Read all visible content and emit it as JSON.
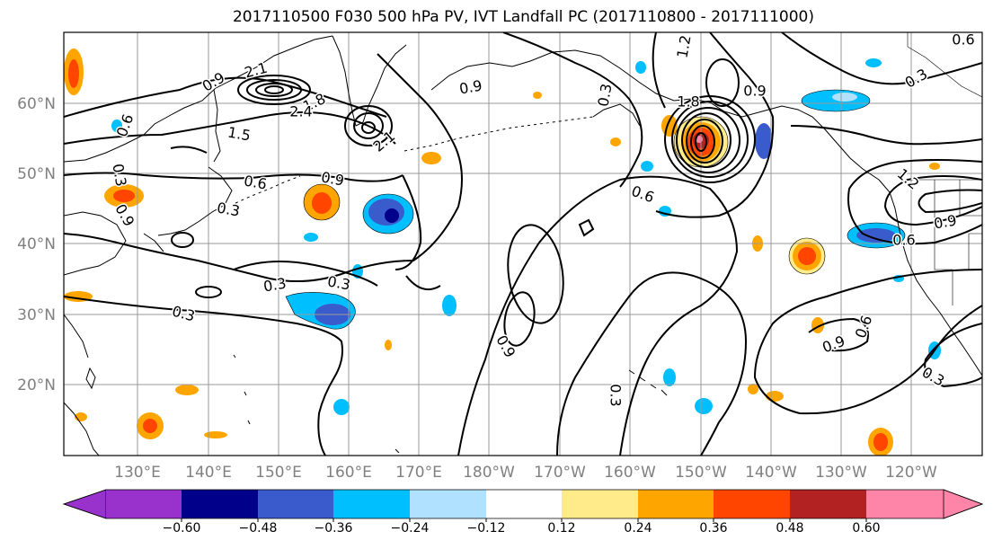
{
  "title": "2017110500 F030 500 hPa PV, IVT Landfall PC (2017110800 - 2017111000)",
  "map": {
    "lon_labels": [
      "130°E",
      "140°E",
      "150°E",
      "160°E",
      "170°E",
      "180°W",
      "170°W",
      "160°W",
      "150°W",
      "140°W",
      "130°W",
      "120°W"
    ],
    "lat_labels": [
      "60°N",
      "50°N",
      "40°N",
      "30°N",
      "20°N"
    ],
    "contour_labels": [
      {
        "text": "0.9"
      },
      {
        "text": "2.1"
      },
      {
        "text": "1.8"
      },
      {
        "text": "2.4"
      },
      {
        "text": "1.5"
      },
      {
        "text": "2.1"
      },
      {
        "text": "0.9"
      },
      {
        "text": "0.6"
      },
      {
        "text": "0.9"
      },
      {
        "text": "0.3"
      },
      {
        "text": "0.3"
      },
      {
        "text": "0.3"
      },
      {
        "text": "0.3"
      },
      {
        "text": "1.2"
      },
      {
        "text": "1.8"
      },
      {
        "text": "0.3"
      },
      {
        "text": "0.9"
      },
      {
        "text": "0.6"
      },
      {
        "text": "0.3"
      },
      {
        "text": "0.9"
      },
      {
        "text": "0.3"
      },
      {
        "text": "0.9"
      },
      {
        "text": "0.6"
      },
      {
        "text": "0.9"
      },
      {
        "text": "0.6"
      },
      {
        "text": "1.2"
      },
      {
        "text": "0.9"
      },
      {
        "text": "0.3"
      },
      {
        "text": "0.6"
      },
      {
        "text": "0.3"
      },
      {
        "text": "0.6"
      }
    ]
  },
  "colorbar": {
    "colors": [
      "#9932CC",
      "#00008B",
      "#3A5BCC",
      "#00BFFF",
      "#B0E2FF",
      "#FFFFFF",
      "#FFEB8A",
      "#FFA500",
      "#FF4500",
      "#B22222",
      "#FF85A8"
    ],
    "tick_labels": [
      "−0.60",
      "−0.48",
      "−0.36",
      "−0.24",
      "−0.12",
      "0.12",
      "0.24",
      "0.36",
      "0.48",
      "0.60"
    ]
  }
}
